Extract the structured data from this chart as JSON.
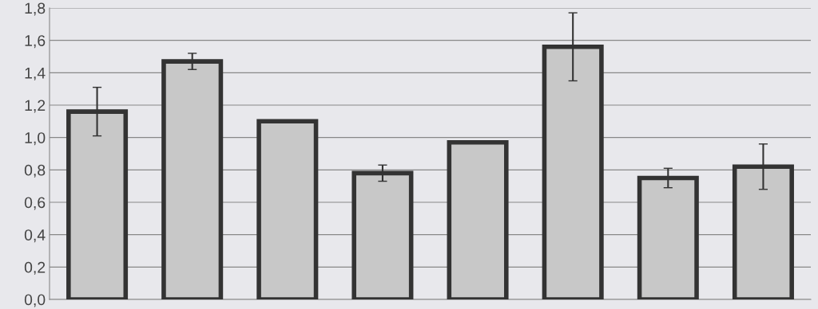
{
  "chart_data": {
    "type": "bar",
    "categories": [
      null,
      null,
      null,
      null,
      null,
      null,
      null,
      null
    ],
    "series": [
      {
        "color": "#c8c8c8",
        "values": [
          1.16,
          1.47,
          1.1,
          0.78,
          0.97,
          1.56,
          0.75,
          0.82
        ],
        "errors": [
          0.15,
          0.05,
          null,
          0.05,
          null,
          0.21,
          0.06,
          0.14
        ]
      }
    ],
    "ylim": [
      0,
      1.8
    ],
    "yticks": [
      {
        "value": 0,
        "label": "0,0"
      },
      {
        "value": 0.2,
        "label": "0,2"
      },
      {
        "value": 0.4,
        "label": "0,4"
      },
      {
        "value": 0.6,
        "label": "0,6"
      },
      {
        "value": 0.8,
        "label": "0,8"
      },
      {
        "value": 1.0,
        "label": "1,0"
      },
      {
        "value": 1.2,
        "label": "1,2"
      },
      {
        "value": 1.4,
        "label": "1,4"
      },
      {
        "value": 1.6,
        "label": "1,6"
      },
      {
        "value": 1.8,
        "label": "1,8"
      }
    ],
    "grid": "y",
    "legend": false
  }
}
